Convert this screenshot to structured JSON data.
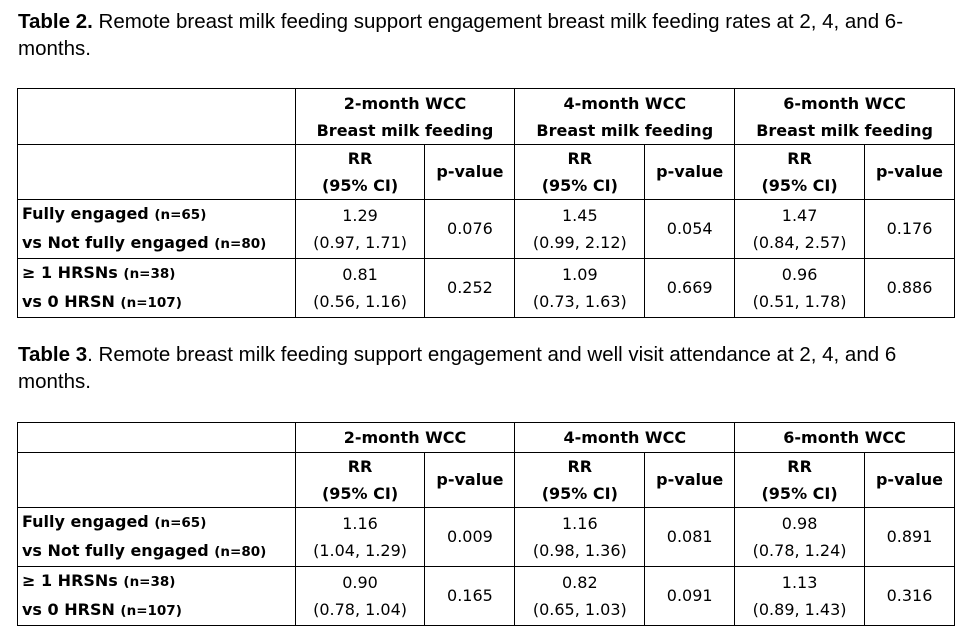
{
  "table2": {
    "caption_bold": "Table 2.",
    "caption_text": " Remote breast milk feeding support engagement breast milk feeding rates at 2, 4, and 6-months.",
    "groups": [
      {
        "line1": "2-month WCC",
        "line2": "Breast milk feeding"
      },
      {
        "line1": "4-month WCC",
        "line2": "Breast milk feeding"
      },
      {
        "line1": "6-month WCC",
        "line2": "Breast milk feeding"
      }
    ],
    "sub_rr1": "RR",
    "sub_rr2": "(95% CI)",
    "sub_p": "p-value",
    "rows": [
      {
        "label1": "Fully engaged ",
        "n1": "(n=65)",
        "label2": "vs Not fully engaged ",
        "n2": "(n=80)",
        "cells": [
          {
            "rr": "1.29",
            "ci": "(0.97, 1.71)",
            "p": "0.076"
          },
          {
            "rr": "1.45",
            "ci": "(0.99, 2.12)",
            "p": "0.054"
          },
          {
            "rr": "1.47",
            "ci": "(0.84, 2.57)",
            "p": "0.176"
          }
        ]
      },
      {
        "label1": "≥ 1 HRSNs ",
        "n1": "(n=38)",
        "label2": "vs 0 HRSN ",
        "n2": "(n=107)",
        "cells": [
          {
            "rr": "0.81",
            "ci": "(0.56, 1.16)",
            "p": "0.252"
          },
          {
            "rr": "1.09",
            "ci": "(0.73, 1.63)",
            "p": "0.669"
          },
          {
            "rr": "0.96",
            "ci": "(0.51, 1.78)",
            "p": "0.886"
          }
        ]
      }
    ]
  },
  "table3": {
    "caption_bold": "Table 3",
    "caption_text": ". Remote breast milk feeding support engagement and well visit attendance at 2, 4, and 6 months.",
    "groups": [
      "2-month WCC",
      "4-month WCC",
      "6-month WCC"
    ],
    "sub_rr1": "RR",
    "sub_rr2": "(95% CI)",
    "sub_p": "p-value",
    "rows": [
      {
        "label1": "Fully engaged ",
        "n1": "(n=65)",
        "label2": "vs Not fully engaged ",
        "n2": "(n=80)",
        "cells": [
          {
            "rr": "1.16",
            "ci": "(1.04, 1.29)",
            "p": "0.009"
          },
          {
            "rr": "1.16",
            "ci": "(0.98, 1.36)",
            "p": "0.081"
          },
          {
            "rr": "0.98",
            "ci": "(0.78, 1.24)",
            "p": "0.891"
          }
        ]
      },
      {
        "label1": "≥ 1 HRSNs ",
        "n1": "(n=38)",
        "label2": "vs 0 HRSN ",
        "n2": "(n=107)",
        "cells": [
          {
            "rr": "0.90",
            "ci": "(0.78, 1.04)",
            "p": "0.165"
          },
          {
            "rr": "0.82",
            "ci": "(0.65, 1.03)",
            "p": "0.091"
          },
          {
            "rr": "1.13",
            "ci": "(0.89, 1.43)",
            "p": "0.316"
          }
        ]
      }
    ]
  }
}
